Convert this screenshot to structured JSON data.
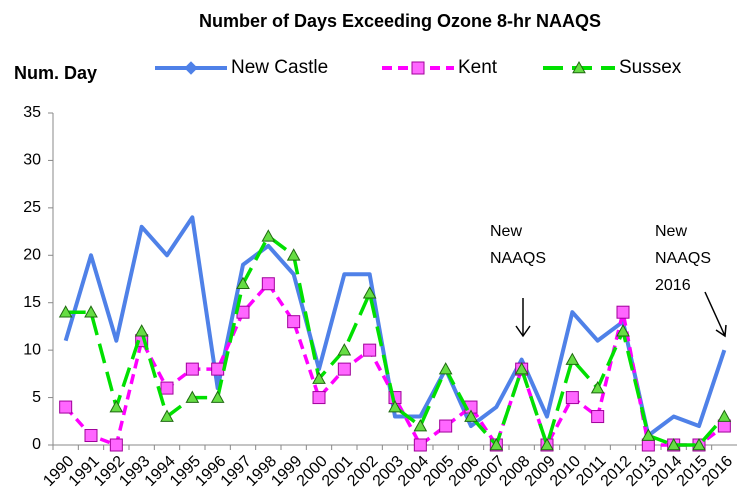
{
  "chart_data": {
    "type": "line",
    "title": "Number of Days Exceeding Ozone 8-hr NAAQS",
    "y_label": "Num. Day",
    "categories": [
      "1990",
      "1991",
      "1992",
      "1993",
      "1994",
      "1995",
      "1996",
      "1997",
      "1998",
      "1999",
      "2000",
      "2001",
      "2002",
      "2003",
      "2004",
      "2005",
      "2006",
      "2007",
      "2008",
      "2009",
      "2010",
      "2011",
      "2012",
      "2013",
      "2014",
      "2015",
      "2016"
    ],
    "series": [
      {
        "name": "New Castle",
        "color": "#4f81e8",
        "marker": "diamond",
        "dashed": false,
        "values": [
          11,
          20,
          11,
          23,
          20,
          24,
          6,
          19,
          21,
          18,
          8,
          18,
          18,
          3,
          3,
          8,
          2,
          4,
          9,
          3,
          14,
          11,
          13,
          1,
          3,
          2,
          10
        ]
      },
      {
        "name": "Kent",
        "color": "#ff00ff",
        "marker": "square",
        "dashed": true,
        "values": [
          4,
          1,
          0,
          11,
          6,
          8,
          8,
          14,
          17,
          13,
          5,
          8,
          10,
          5,
          0,
          2,
          4,
          0,
          8,
          0,
          5,
          3,
          14,
          0,
          0,
          0,
          2
        ]
      },
      {
        "name": "Sussex",
        "color": "#00e000",
        "marker": "triangle",
        "dashed": true,
        "values": [
          14,
          14,
          4,
          12,
          3,
          5,
          5,
          17,
          22,
          20,
          7,
          10,
          16,
          4,
          2,
          8,
          3,
          0,
          8,
          0,
          9,
          6,
          12,
          1,
          0,
          0,
          3
        ]
      }
    ],
    "ylim": [
      0,
      35
    ],
    "yticks": [
      0,
      5,
      10,
      15,
      20,
      25,
      30,
      35
    ],
    "grid": false,
    "annotations": [
      {
        "lines": [
          "New",
          "NAAQS"
        ]
      },
      {
        "lines": [
          "New",
          "NAAQS",
          "2016"
        ]
      }
    ]
  }
}
